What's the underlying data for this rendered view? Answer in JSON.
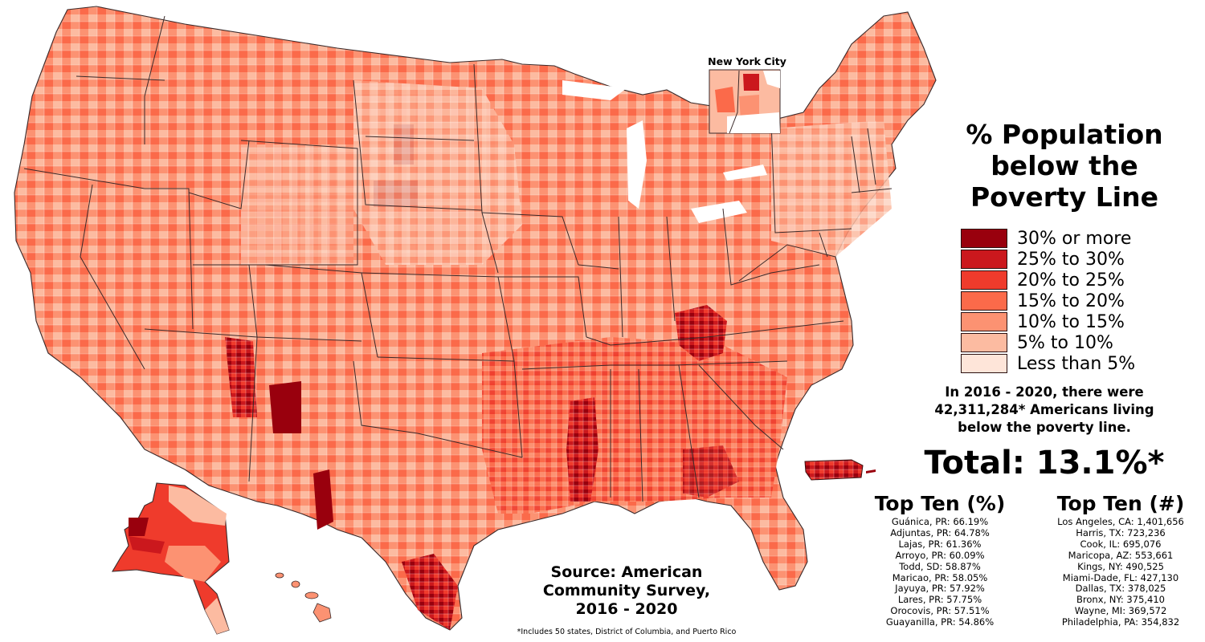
{
  "title": {
    "line1": "% Population",
    "line2": "below the",
    "line3": "Poverty Line"
  },
  "legend": {
    "items": [
      {
        "label": "30% or more",
        "color": "#99000d"
      },
      {
        "label": "25% to 30%",
        "color": "#cb181d"
      },
      {
        "label": "20% to 25%",
        "color": "#ef3b2c"
      },
      {
        "label": "15% to 20%",
        "color": "#fb6a4a"
      },
      {
        "label": "10% to 15%",
        "color": "#fc9272"
      },
      {
        "label": "5% to 10%",
        "color": "#fcbba1"
      },
      {
        "label": "Less than 5%",
        "color": "#fee5d9"
      }
    ]
  },
  "summary": {
    "line1": "In 2016 - 2020, there were",
    "line2": "42,311,284* Americans living",
    "line3": "below the poverty line."
  },
  "total": "Total: 13.1%*",
  "top_ten_percent": {
    "heading": "Top Ten (%)",
    "entries": [
      "Guánica, PR: 66.19%",
      "Adjuntas, PR: 64.78%",
      "Lajas, PR: 61.36%",
      "Arroyo, PR: 60.09%",
      "Todd, SD: 58.87%",
      "Maricao, PR: 58.05%",
      "Jayuya, PR: 57.92%",
      "Lares, PR: 57.75%",
      "Orocovis, PR: 57.51%",
      "Guayanilla, PR: 54.86%"
    ]
  },
  "top_ten_number": {
    "heading": "Top Ten (#)",
    "entries": [
      "Los Angeles, CA: 1,401,656",
      "Harris, TX: 723,236",
      "Cook, IL: 695,076",
      "Maricopa, AZ: 553,661",
      "Kings, NY: 490,525",
      "Miami-Dade, FL: 427,130",
      "Dallas, TX: 378,025",
      "Bronx, NY: 375,410",
      "Wayne, MI: 369,572",
      "Philadelphia, PA: 354,832"
    ]
  },
  "source": {
    "line1": "Source: American",
    "line2": "Community Survey,",
    "line3": "2016 - 2020"
  },
  "footnote": "*Includes 50 states, District of Columbia, and Puerto Rico",
  "inset": {
    "nyc_label": "New York City"
  },
  "chart_data": {
    "type": "choropleth",
    "title": "% Population below the Poverty Line",
    "geography": "US counties (50 states, DC, Puerto Rico)",
    "period": "2016 - 2020",
    "bins": [
      "30% or more",
      "25% to 30%",
      "20% to 25%",
      "15% to 20%",
      "10% to 15%",
      "5% to 10%",
      "Less than 5%"
    ],
    "bin_colors": [
      "#99000d",
      "#cb181d",
      "#ef3b2c",
      "#fb6a4a",
      "#fc9272",
      "#fcbba1",
      "#fee5d9"
    ],
    "total_below_poverty": 42311284,
    "total_rate_percent": 13.1,
    "top_ten_percent": [
      {
        "county": "Guánica, PR",
        "value": 66.19
      },
      {
        "county": "Adjuntas, PR",
        "value": 64.78
      },
      {
        "county": "Lajas, PR",
        "value": 61.36
      },
      {
        "county": "Arroyo, PR",
        "value": 60.09
      },
      {
        "county": "Todd, SD",
        "value": 58.87
      },
      {
        "county": "Maricao, PR",
        "value": 58.05
      },
      {
        "county": "Jayuya, PR",
        "value": 57.92
      },
      {
        "county": "Lares, PR",
        "value": 57.75
      },
      {
        "county": "Orocovis, PR",
        "value": 57.51
      },
      {
        "county": "Guayanilla, PR",
        "value": 54.86
      }
    ],
    "top_ten_count": [
      {
        "county": "Los Angeles, CA",
        "value": 1401656
      },
      {
        "county": "Harris, TX",
        "value": 723236
      },
      {
        "county": "Cook, IL",
        "value": 695076
      },
      {
        "county": "Maricopa, AZ",
        "value": 553661
      },
      {
        "county": "Kings, NY",
        "value": 490525
      },
      {
        "county": "Miami-Dade, FL",
        "value": 427130
      },
      {
        "county": "Dallas, TX",
        "value": 378025
      },
      {
        "county": "Bronx, NY",
        "value": 375410
      },
      {
        "county": "Wayne, MI",
        "value": 369572
      },
      {
        "county": "Philadelphia, PA",
        "value": 354832
      }
    ],
    "source": "American Community Survey, 2016 - 2020"
  }
}
